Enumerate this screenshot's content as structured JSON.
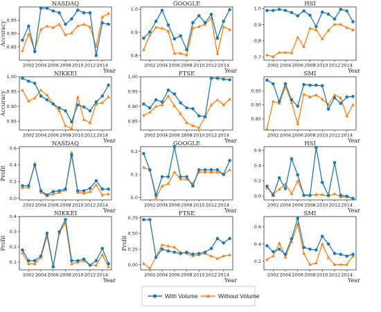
{
  "chart_data": {
    "type": "line",
    "x": [
      2001,
      2002,
      2003,
      2004,
      2005,
      2006,
      2007,
      2008,
      2009,
      2010,
      2011,
      2012,
      2013,
      2014,
      2015
    ],
    "legend": {
      "placement": "bottom-center",
      "entries": [
        {
          "name": "With Volume",
          "color": "#1f77b4",
          "marker": "circle"
        },
        {
          "name": "Without Volume",
          "color": "#ff7f0e",
          "marker": "triangle"
        }
      ]
    },
    "xlabel": "Year",
    "panels": [
      {
        "title": "NASDAQ",
        "ylabel": "Accuracy",
        "ylim": [
          0.8,
          1.0
        ],
        "yticks": [
          0.85,
          0.9,
          0.95
        ],
        "series": [
          {
            "name": "With Volume",
            "values": [
              0.875,
              0.928,
              0.832,
              0.995,
              0.995,
              0.985,
              0.978,
              0.935,
              0.955,
              0.988,
              0.978,
              0.978,
              0.818,
              0.94,
              0.935
            ]
          },
          {
            "name": "Without Volume",
            "values": [
              0.835,
              0.898,
              0.838,
              0.915,
              0.928,
              0.922,
              0.935,
              0.895,
              0.902,
              0.928,
              0.935,
              0.925,
              0.852,
              0.962,
              0.975
            ]
          }
        ]
      },
      {
        "title": "GOOGLE",
        "ylabel": "",
        "ylim": [
          0.78,
          1.01
        ],
        "yticks": [
          0.8,
          0.9,
          1.0
        ],
        "series": [
          {
            "name": "With Volume",
            "values": [
              0.875,
              0.902,
              0.948,
              0.995,
              0.932,
              0.872,
              0.885,
              0.825,
              0.942,
              0.972,
              0.942,
              0.978,
              0.875,
              0.948,
              0.998
            ]
          },
          {
            "name": "Without Volume",
            "values": [
              0.825,
              0.888,
              0.922,
              0.918,
              0.905,
              0.81,
              0.81,
              0.802,
              0.918,
              0.925,
              0.935,
              0.962,
              0.808,
              0.925,
              0.912
            ]
          }
        ]
      },
      {
        "title": "HSI",
        "ylabel": "",
        "ylim": [
          0.68,
          1.01
        ],
        "yticks": [
          0.7,
          0.8,
          0.9,
          1.0
        ],
        "series": [
          {
            "name": "With Volume",
            "values": [
              0.988,
              0.988,
              0.995,
              0.988,
              0.975,
              0.955,
              0.985,
              0.958,
              0.888,
              0.978,
              0.965,
              0.935,
              0.995,
              0.985,
              0.918
            ]
          },
          {
            "name": "Without Volume",
            "values": [
              0.712,
              0.702,
              0.728,
              0.728,
              0.725,
              0.822,
              0.765,
              0.878,
              0.868,
              0.812,
              0.865,
              0.902,
              0.902,
              0.882,
              0.868
            ]
          }
        ]
      },
      {
        "title": "NIKKEI",
        "ylabel": "Accuracy",
        "ylim": [
          0.82,
          1.0
        ],
        "yticks": [
          0.85,
          0.9,
          0.95,
          1.0
        ],
        "series": [
          {
            "name": "With Volume",
            "values": [
              0.995,
              0.985,
              0.978,
              0.935,
              0.922,
              0.908,
              0.895,
              0.885,
              0.848,
              0.905,
              0.898,
              0.885,
              0.915,
              0.935,
              0.972
            ]
          },
          {
            "name": "Without Volume",
            "values": [
              0.955,
              0.918,
              0.928,
              0.955,
              0.938,
              0.908,
              0.885,
              0.835,
              0.825,
              0.932,
              0.855,
              0.845,
              0.908,
              0.912,
              0.932
            ]
          }
        ]
      },
      {
        "title": "FTSE",
        "ylabel": "",
        "ylim": [
          0.82,
          1.0
        ],
        "yticks": [
          0.85,
          0.9,
          0.95,
          1.0
        ],
        "series": [
          {
            "name": "With Volume",
            "values": [
              0.908,
              0.895,
              0.922,
              0.915,
              0.955,
              0.942,
              0.912,
              0.895,
              0.892,
              0.868,
              0.865,
              0.995,
              0.995,
              0.992,
              0.99
            ]
          },
          {
            "name": "Without Volume",
            "values": [
              0.87,
              0.88,
              0.9,
              0.905,
              0.935,
              0.902,
              0.875,
              0.845,
              0.835,
              0.828,
              0.865,
              0.905,
              0.922,
              0.905,
              0.925
            ]
          }
        ]
      },
      {
        "title": "SMI",
        "ylabel": "",
        "ylim": [
          0.81,
          1.0
        ],
        "yticks": [
          0.85,
          0.9,
          0.95
        ],
        "series": [
          {
            "name": "With Volume",
            "values": [
              0.988,
              0.975,
              0.912,
              0.975,
              0.918,
              0.895,
              0.972,
              0.97,
              0.97,
              0.968,
              0.885,
              0.925,
              0.905,
              0.928,
              0.93
            ]
          },
          {
            "name": "Without Volume",
            "values": [
              0.815,
              0.912,
              0.905,
              0.965,
              0.908,
              0.832,
              0.938,
              0.928,
              0.935,
              0.92,
              0.902,
              0.935,
              0.925,
              0.86,
              0.9
            ]
          }
        ]
      },
      {
        "title": "NASDAQ",
        "ylabel": "Profit",
        "ylim": [
          -0.02,
          0.62
        ],
        "yticks": [
          0.0,
          0.2,
          0.4,
          0.6
        ],
        "series": [
          {
            "name": "With Volume",
            "values": [
              0.15,
              0.15,
              0.4,
              0.09,
              0.04,
              0.08,
              0.09,
              0.11,
              0.52,
              0.09,
              0.09,
              0.12,
              0.21,
              0.11,
              0.11
            ]
          },
          {
            "name": "Without Volume",
            "values": [
              0.13,
              0.13,
              0.42,
              0.07,
              0.03,
              0.05,
              0.07,
              0.1,
              0.55,
              0.07,
              0.06,
              0.08,
              0.16,
              0.04,
              0.05
            ]
          }
        ]
      },
      {
        "title": "GOOGLE",
        "ylabel": "",
        "ylim": [
          -0.01,
          0.22
        ],
        "yticks": [
          0.0,
          0.1,
          0.2
        ],
        "series": [
          {
            "name": "With Volume",
            "values": [
              0.19,
              0.12,
              0.01,
              0.09,
              0.09,
              0.22,
              0.09,
              0.09,
              0.05,
              0.12,
              0.12,
              0.12,
              0.12,
              0.1,
              0.16
            ]
          },
          {
            "name": "Without Volume",
            "values": [
              0.13,
              0.12,
              0.0,
              0.05,
              0.06,
              0.11,
              0.08,
              0.08,
              0.06,
              0.11,
              0.11,
              0.11,
              0.11,
              0.1,
              0.12
            ]
          }
        ]
      },
      {
        "title": "HSI",
        "ylabel": "",
        "ylim": [
          -0.05,
          0.65
        ],
        "yticks": [
          0.0,
          0.2,
          0.4,
          0.6
        ],
        "series": [
          {
            "name": "With Volume",
            "values": [
              0.13,
              0.01,
              0.24,
              0.1,
              0.49,
              0.28,
              0.01,
              0.01,
              0.64,
              0.18,
              0.01,
              0.44,
              0.01,
              0.0,
              -0.03
            ]
          },
          {
            "name": "Without Volume",
            "values": [
              0.11,
              0.03,
              0.09,
              0.16,
              0.03,
              0.2,
              0.02,
              0.01,
              0.02,
              0.02,
              0.0,
              0.03,
              -0.01,
              -0.01,
              -0.03
            ]
          }
        ]
      },
      {
        "title": "NIKKEI",
        "ylabel": "Profit",
        "ylim": [
          0.05,
          0.4
        ],
        "yticks": [
          0.1,
          0.2,
          0.3,
          0.4
        ],
        "series": [
          {
            "name": "With Volume",
            "values": [
              0.18,
              0.11,
              0.11,
              0.14,
              0.29,
              0.07,
              0.3,
              0.38,
              0.11,
              0.11,
              0.12,
              0.08,
              0.11,
              0.19,
              0.09
            ]
          },
          {
            "name": "Without Volume",
            "values": [
              0.16,
              0.09,
              0.09,
              0.13,
              0.27,
              0.07,
              0.29,
              0.36,
              0.09,
              0.1,
              0.11,
              0.08,
              0.08,
              0.15,
              0.07
            ]
          }
        ]
      },
      {
        "title": "FTSE",
        "ylabel": "Profit",
        "ylim": [
          -0.08,
          0.77
        ],
        "yticks": [
          0.0,
          0.25,
          0.5,
          0.75
        ],
        "series": [
          {
            "name": "With Volume",
            "values": [
              0.72,
              0.72,
              0.12,
              0.25,
              0.22,
              0.2,
              0.18,
              0.2,
              0.17,
              0.18,
              0.2,
              0.26,
              0.42,
              0.35,
              0.42
            ]
          },
          {
            "name": "Without Volume",
            "values": [
              0.02,
              -0.06,
              0.12,
              0.32,
              0.3,
              0.28,
              0.2,
              0.18,
              0.14,
              0.16,
              0.18,
              0.14,
              0.1,
              0.14,
              0.16
            ]
          }
        ]
      },
      {
        "title": "SMI",
        "ylabel": "",
        "ylim": [
          0.1,
          0.72
        ],
        "yticks": [
          0.2,
          0.4,
          0.6
        ],
        "series": [
          {
            "name": "With Volume",
            "values": [
              0.38,
              0.31,
              0.34,
              0.28,
              0.46,
              0.7,
              0.36,
              0.34,
              0.33,
              0.49,
              0.4,
              0.29,
              0.28,
              0.26,
              0.28
            ]
          },
          {
            "name": "Without Volume",
            "values": [
              0.22,
              0.26,
              0.41,
              0.25,
              0.43,
              0.63,
              0.29,
              0.16,
              0.18,
              0.4,
              0.24,
              0.16,
              0.16,
              0.16,
              0.26
            ]
          }
        ]
      }
    ]
  }
}
